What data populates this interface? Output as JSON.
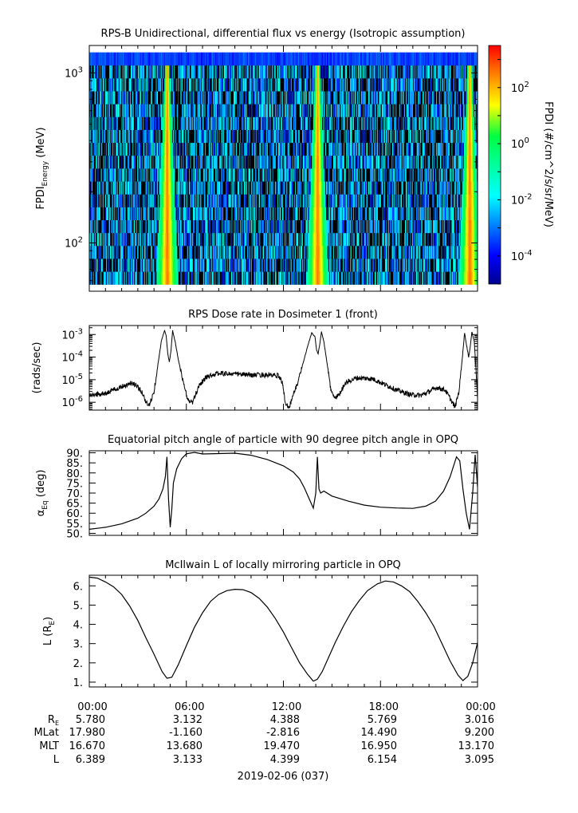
{
  "chart_data": [
    {
      "type": "heatmap",
      "title": "RPS-B  Unidirectional, differential flux vs energy (Isotropic assumption)",
      "ylabel_main": "FPDI",
      "ylabel_sub": "Energy",
      "ylabel_unit": " (MeV)",
      "yscale": "log",
      "ylim": [
        52,
        1450
      ],
      "yticks": [
        {
          "value": 100,
          "mantissa": "10",
          "exponent": "2"
        },
        {
          "value": 1000,
          "mantissa": "10",
          "exponent": "3"
        }
      ],
      "energy_range_mev": [
        57,
        1320
      ],
      "xlim_hours": [
        0,
        24
      ],
      "enhancement_peaks_hours": [
        4.8,
        14.1,
        23.5
      ],
      "colorbar": {
        "label": "FPDI (#/cm^2/s/sr/MeV)",
        "scale": "log",
        "range_log10": [
          -5,
          3.5
        ],
        "ticks": [
          {
            "value": -4,
            "mantissa": "10",
            "exponent": "-4"
          },
          {
            "value": -2,
            "mantissa": "10",
            "exponent": "-2"
          },
          {
            "value": 0,
            "mantissa": "10",
            "exponent": "0"
          },
          {
            "value": 2,
            "mantissa": "10",
            "exponent": "2"
          }
        ]
      }
    },
    {
      "type": "line",
      "title": "RPS  Dose rate in Dosimeter 1 (front)",
      "ylabel": "(rads/sec)",
      "yscale": "log",
      "ylim": [
        4.5e-07,
        0.0025
      ],
      "yticks": [
        {
          "value": 1e-06,
          "mantissa": "10",
          "exponent": "-6"
        },
        {
          "value": 1e-05,
          "mantissa": "10",
          "exponent": "-5"
        },
        {
          "value": 0.0001,
          "mantissa": "10",
          "exponent": "-4"
        },
        {
          "value": 0.001,
          "mantissa": "10",
          "exponent": "-3"
        }
      ],
      "x": [
        0.0,
        1.0,
        1.5,
        2.0,
        2.6,
        3.0,
        3.3,
        3.5,
        3.7,
        4.0,
        4.25,
        4.45,
        4.65,
        4.75,
        4.85,
        4.95,
        5.05,
        5.15,
        5.3,
        5.5,
        5.8,
        6.1,
        6.4,
        6.8,
        7.3,
        8.0,
        9.0,
        10.0,
        11.0,
        11.7,
        11.95,
        12.1,
        12.35,
        12.6,
        12.9,
        13.2,
        13.5,
        13.75,
        13.95,
        14.05,
        14.15,
        14.25,
        14.35,
        14.5,
        14.7,
        14.95,
        15.2,
        15.5,
        15.8,
        16.5,
        17.5,
        18.3,
        19.0,
        19.8,
        20.5,
        21.0,
        21.5,
        22.0,
        22.3,
        22.6,
        22.85,
        23.05,
        23.2,
        23.3,
        23.45,
        23.55,
        23.65,
        23.8,
        24.0
      ],
      "values": [
        2e-06,
        2.5e-06,
        3.5e-06,
        5e-06,
        7e-06,
        5e-06,
        2.5e-06,
        1e-06,
        7e-07,
        3e-06,
        5e-05,
        0.0005,
        0.0015,
        0.0009,
        0.00015,
        6e-05,
        0.0002,
        0.0015,
        0.0005,
        8e-05,
        8e-06,
        1.2e-06,
        1e-06,
        6e-06,
        1.4e-05,
        1.9e-05,
        1.8e-05,
        1.6e-05,
        1.6e-05,
        1.5e-05,
        7e-06,
        1e-06,
        6e-07,
        2e-06,
        8e-06,
        5e-05,
        0.0003,
        0.0012,
        0.0008,
        0.0002,
        0.00014,
        0.0004,
        0.0013,
        0.0005,
        5e-05,
        3e-06,
        1.5e-06,
        2.5e-06,
        7e-06,
        1.2e-05,
        1.1e-05,
        6e-06,
        3.5e-06,
        2.2e-06,
        2e-06,
        3e-06,
        4.5e-06,
        3.5e-06,
        1.5e-06,
        6e-07,
        3e-06,
        8e-05,
        0.0012,
        0.0004,
        0.0001,
        0.0003,
        0.0013,
        0.0005,
        1.5e-06
      ]
    },
    {
      "type": "line",
      "title": "Equatorial pitch angle of particle with 90 degree pitch angle in OPQ",
      "ylabel_main": "α",
      "ylabel_sub": "Eq",
      "ylabel_unit": " (deg)",
      "ylim": [
        49,
        91
      ],
      "yticks": [
        50,
        55,
        60,
        65,
        70,
        75,
        80,
        85,
        90
      ],
      "ytick_labels": [
        "50.",
        "55.",
        "60.",
        "65.",
        "70.",
        "75.",
        "80.",
        "85.",
        "90."
      ],
      "x": [
        0.0,
        1.0,
        2.0,
        3.0,
        3.5,
        4.0,
        4.3,
        4.55,
        4.7,
        4.8,
        4.9,
        5.0,
        5.1,
        5.2,
        5.4,
        5.7,
        6.0,
        6.5,
        7.0,
        8.0,
        9.0,
        10.0,
        11.0,
        12.0,
        12.6,
        13.0,
        13.3,
        13.6,
        13.85,
        14.0,
        14.1,
        14.2,
        14.3,
        14.5,
        15.0,
        16.0,
        17.0,
        18.0,
        19.0,
        20.0,
        20.8,
        21.4,
        21.9,
        22.3,
        22.7,
        22.9,
        23.1,
        23.3,
        23.5,
        23.7,
        23.85,
        24.0
      ],
      "values": [
        52,
        53,
        54.7,
        57.5,
        60,
        63.5,
        67,
        72,
        78,
        88,
        67,
        53,
        62,
        75,
        82,
        87,
        89.5,
        90.2,
        89.4,
        89.6,
        89.8,
        88.8,
        86.7,
        83.5,
        80.5,
        77,
        72.5,
        67,
        62.5,
        70,
        88,
        72,
        70,
        71,
        68.5,
        66,
        64,
        63,
        62.6,
        62.4,
        63.5,
        66,
        71,
        78,
        88,
        86,
        72,
        60,
        52,
        70,
        89,
        73
      ]
    },
    {
      "type": "line",
      "title": "McIlwain L of locally mirroring particle in OPQ",
      "ylabel_main": "L (R",
      "ylabel_sub": "E",
      "ylabel_unit": ")",
      "ylim": [
        0.75,
        6.55
      ],
      "yticks": [
        1,
        2,
        3,
        4,
        5,
        6
      ],
      "ytick_labels": [
        "1.",
        "2.",
        "3.",
        "4.",
        "5.",
        "6."
      ],
      "x": [
        0.0,
        0.5,
        1.0,
        1.5,
        2.0,
        2.5,
        3.0,
        3.5,
        4.0,
        4.5,
        4.8,
        5.1,
        5.5,
        6.0,
        6.5,
        7.0,
        7.5,
        8.0,
        8.5,
        9.0,
        9.5,
        10.0,
        10.5,
        11.0,
        11.5,
        12.0,
        12.5,
        13.0,
        13.5,
        13.85,
        14.1,
        14.4,
        14.8,
        15.2,
        15.7,
        16.2,
        16.7,
        17.2,
        17.8,
        18.3,
        18.8,
        19.3,
        19.8,
        20.3,
        20.8,
        21.3,
        21.8,
        22.3,
        22.8,
        23.1,
        23.4,
        23.7,
        24.0
      ],
      "values": [
        6.45,
        6.4,
        6.2,
        5.95,
        5.55,
        4.95,
        4.2,
        3.3,
        2.45,
        1.55,
        1.2,
        1.25,
        1.9,
        2.9,
        3.85,
        4.6,
        5.2,
        5.55,
        5.75,
        5.82,
        5.8,
        5.65,
        5.35,
        4.9,
        4.3,
        3.6,
        2.8,
        2.0,
        1.4,
        1.05,
        1.15,
        1.55,
        2.3,
        3.05,
        3.9,
        4.65,
        5.25,
        5.75,
        6.1,
        6.25,
        6.2,
        6.0,
        5.7,
        5.2,
        4.6,
        3.9,
        3.0,
        2.1,
        1.35,
        1.08,
        1.3,
        2.0,
        3.05
      ]
    }
  ],
  "time_axis": {
    "tick_hours": [
      0,
      6,
      12,
      18,
      24
    ],
    "tick_labels": [
      "00:00",
      "06:00",
      "12:00",
      "18:00",
      "00:00"
    ],
    "date_label": "2019-02-06 (037)"
  },
  "ephemeris": {
    "re_label_main": "R",
    "re_label_sub": "E",
    "row_labels": [
      "MLat",
      "MLT",
      "L"
    ],
    "rows": [
      [
        "5.780",
        "3.132",
        "4.388",
        "5.769",
        "3.016"
      ],
      [
        "17.980",
        "-1.160",
        "-2.816",
        "14.490",
        "9.200"
      ],
      [
        "16.670",
        "13.680",
        "19.470",
        "16.950",
        "13.170"
      ],
      [
        "6.389",
        "3.133",
        "4.399",
        "6.154",
        "3.095"
      ]
    ]
  }
}
